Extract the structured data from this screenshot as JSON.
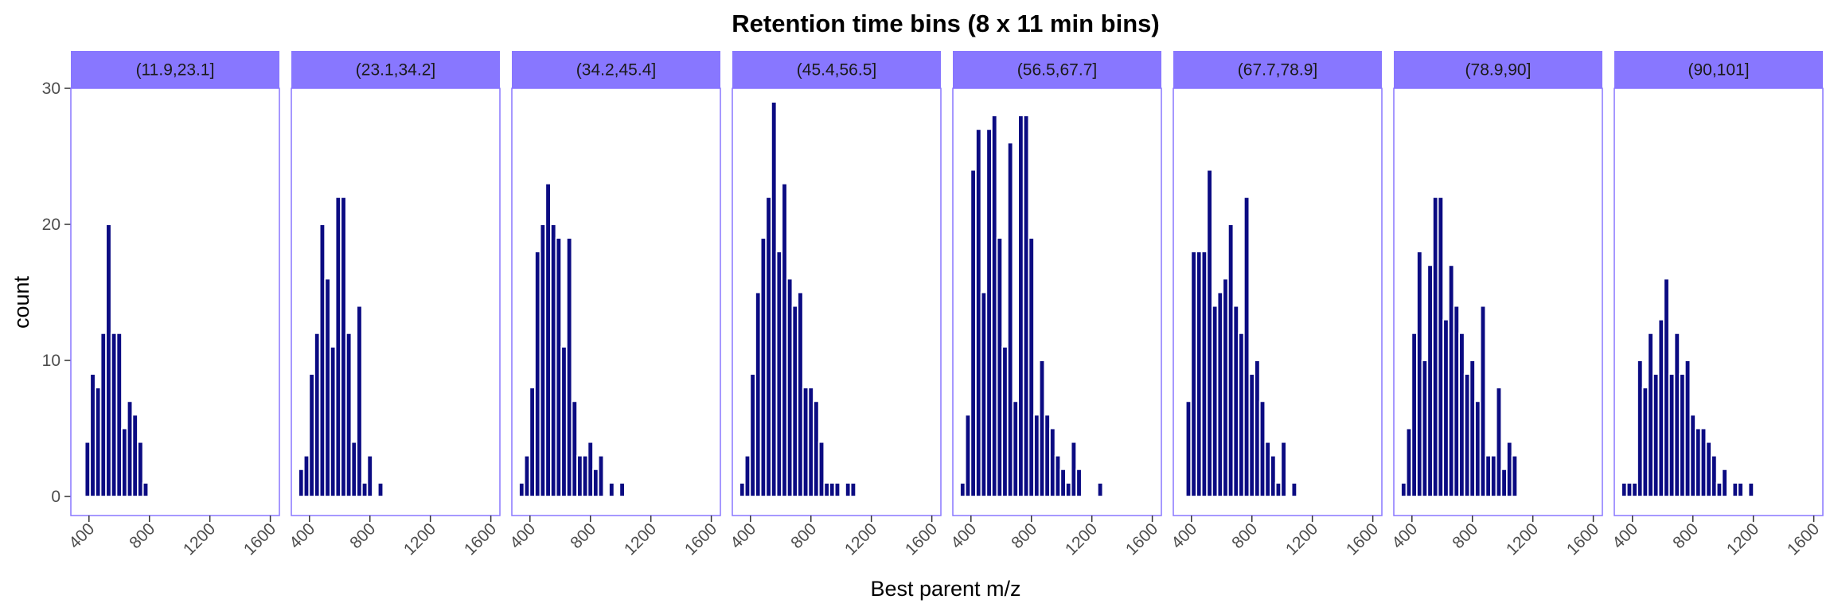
{
  "chart_data": {
    "type": "bar",
    "title": "Retention time bins (8 x 11 min bins)",
    "xlabel": "Best parent m/z",
    "ylabel": "count",
    "xlim": [
      280,
      1660
    ],
    "ylim": [
      -1.4,
      30
    ],
    "bin_width": 35,
    "x_ticks": [
      400,
      800,
      1200,
      1600
    ],
    "y_ticks": [
      0,
      10,
      20,
      30
    ],
    "grid": false,
    "colors": {
      "bar": "#0b0b82",
      "bar_outline": "#ffffff",
      "strip_fill": "#8877ff",
      "panel_border": "#8877ff",
      "tick": "#333333"
    },
    "panels": [
      {
        "label": "(11.9,23.1]",
        "x": [
          390,
          425,
          460,
          495,
          530,
          565,
          600,
          635,
          670,
          705,
          740,
          775,
          810,
          845
        ],
        "values": [
          4,
          9,
          8,
          12,
          20,
          12,
          12,
          5,
          7,
          6,
          4,
          1,
          0,
          0
        ]
      },
      {
        "label": "(23.1,34.2]",
        "x": [
          345,
          380,
          415,
          450,
          485,
          520,
          555,
          590,
          625,
          660,
          695,
          730,
          765,
          800,
          835,
          870,
          905,
          940,
          975,
          1010,
          1045
        ],
        "values": [
          2,
          3,
          9,
          12,
          20,
          16,
          11,
          22,
          22,
          12,
          4,
          14,
          1,
          3,
          0,
          1,
          0,
          0,
          0,
          0,
          0
        ]
      },
      {
        "label": "(34.2,45.4]",
        "x": [
          345,
          380,
          415,
          450,
          485,
          520,
          555,
          590,
          625,
          660,
          695,
          730,
          765,
          800,
          835,
          870,
          905,
          940,
          975,
          1010,
          1045,
          1080,
          1115,
          1150,
          1185,
          1220,
          1255,
          1290,
          1325
        ],
        "values": [
          1,
          3,
          8,
          18,
          20,
          23,
          20,
          19,
          11,
          19,
          7,
          3,
          3,
          4,
          2,
          3,
          0,
          1,
          0,
          1,
          0,
          0,
          0,
          0,
          0,
          0,
          0,
          0,
          0
        ]
      },
      {
        "label": "(45.4,56.5]",
        "x": [
          345,
          380,
          415,
          450,
          485,
          520,
          555,
          590,
          625,
          660,
          695,
          730,
          765,
          800,
          835,
          870,
          905,
          940,
          975,
          1010,
          1045,
          1080,
          1115,
          1150,
          1185,
          1220,
          1255,
          1290,
          1325,
          1360
        ],
        "values": [
          1,
          3,
          9,
          15,
          19,
          22,
          29,
          18,
          23,
          16,
          14,
          15,
          8,
          8,
          7,
          4,
          1,
          1,
          1,
          0,
          1,
          1,
          0,
          0,
          0,
          0,
          0,
          0,
          0,
          0
        ]
      },
      {
        "label": "(56.5,67.7]",
        "x": [
          345,
          380,
          415,
          450,
          485,
          520,
          555,
          590,
          625,
          660,
          695,
          730,
          765,
          800,
          835,
          870,
          905,
          940,
          975,
          1010,
          1045,
          1080,
          1115,
          1150,
          1185,
          1220,
          1255,
          1290,
          1325,
          1360,
          1395,
          1430,
          1465
        ],
        "values": [
          1,
          6,
          24,
          27,
          15,
          27,
          28,
          19,
          11,
          26,
          7,
          28,
          28,
          19,
          6,
          10,
          6,
          5,
          3,
          2,
          1,
          4,
          2,
          0,
          0,
          0,
          1,
          0,
          0,
          0,
          0,
          0,
          0
        ]
      },
      {
        "label": "(67.7,78.9]",
        "x": [
          380,
          415,
          450,
          485,
          520,
          555,
          590,
          625,
          660,
          695,
          730,
          765,
          800,
          835,
          870,
          905,
          940,
          975,
          1010,
          1045,
          1080,
          1115,
          1150,
          1185,
          1220,
          1255,
          1290
        ],
        "values": [
          7,
          18,
          18,
          18,
          24,
          14,
          15,
          16,
          20,
          14,
          12,
          22,
          9,
          10,
          7,
          4,
          3,
          1,
          4,
          0,
          1,
          0,
          0,
          0,
          0,
          0,
          0
        ]
      },
      {
        "label": "(78.9,90]",
        "x": [
          345,
          380,
          415,
          450,
          485,
          520,
          555,
          590,
          625,
          660,
          695,
          730,
          765,
          800,
          835,
          870,
          905,
          940,
          975,
          1010,
          1045,
          1080,
          1115,
          1150,
          1185,
          1220,
          1255,
          1290,
          1325
        ],
        "values": [
          1,
          5,
          12,
          18,
          10,
          17,
          22,
          22,
          13,
          17,
          14,
          12,
          9,
          10,
          7,
          14,
          3,
          3,
          8,
          2,
          4,
          3,
          0,
          0,
          0,
          0,
          0,
          0,
          0
        ]
      },
      {
        "label": "(90,101]",
        "x": [
          345,
          380,
          415,
          450,
          485,
          520,
          555,
          590,
          625,
          660,
          695,
          730,
          765,
          800,
          835,
          870,
          905,
          940,
          975,
          1010,
          1045,
          1080,
          1115,
          1150,
          1185,
          1220,
          1255,
          1290,
          1325,
          1360,
          1395,
          1430,
          1465,
          1500,
          1535,
          1570,
          1605
        ],
        "values": [
          1,
          1,
          1,
          10,
          8,
          12,
          9,
          13,
          16,
          9,
          12,
          9,
          10,
          6,
          5,
          5,
          4,
          3,
          1,
          2,
          0,
          1,
          1,
          0,
          1,
          0,
          0,
          0,
          0,
          0,
          0,
          0,
          0,
          0,
          0,
          0,
          0
        ]
      }
    ]
  }
}
